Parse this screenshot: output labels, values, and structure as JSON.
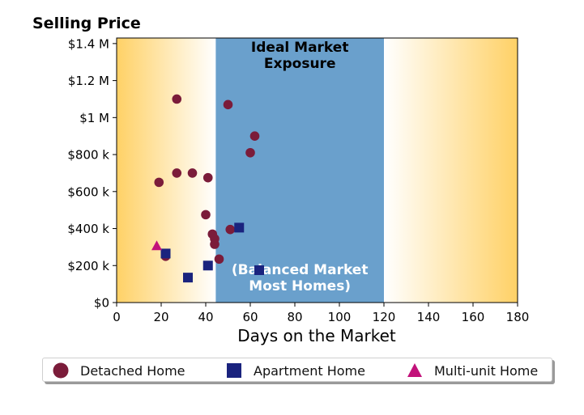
{
  "chart_data": {
    "type": "scatter",
    "title": "Selling Price",
    "xlabel": "Days on the Market",
    "ylabel": "",
    "xlim": [
      0,
      180
    ],
    "ylim": [
      0,
      1430000
    ],
    "x_ticks": [
      0,
      20,
      40,
      60,
      80,
      100,
      120,
      140,
      160,
      180
    ],
    "x_tick_labels": [
      "0",
      "20",
      "40",
      "60",
      "80",
      "100",
      "120",
      "140",
      "160",
      "180"
    ],
    "y_ticks": [
      0,
      200000,
      400000,
      600000,
      800000,
      1000000,
      1200000,
      1400000
    ],
    "y_tick_labels": [
      "$0",
      "$200 k",
      "$400 k",
      "$600 k",
      "$800 k",
      "$1 M",
      "$1.2 M",
      "$1.4 M"
    ],
    "grid": false,
    "legend_position": "bottom",
    "background": {
      "gradient_color": "#ffd166",
      "ideal_band": {
        "from": 44.5,
        "to": 120,
        "color": "#6aa0cc"
      },
      "annotation_top": [
        "Ideal Market",
        "Exposure"
      ],
      "annotation_bottom": [
        "(Balanced Market",
        "Most Homes)"
      ]
    },
    "series": [
      {
        "name": "Detached Home",
        "marker": "circle",
        "color": "#7b1c3a",
        "points": [
          [
            27,
            1100000
          ],
          [
            50,
            1070000
          ],
          [
            62,
            900000
          ],
          [
            60,
            810000
          ],
          [
            27,
            700000
          ],
          [
            34,
            700000
          ],
          [
            41,
            675000
          ],
          [
            19,
            650000
          ],
          [
            40,
            475000
          ],
          [
            43,
            370000
          ],
          [
            44,
            345000
          ],
          [
            44,
            315000
          ],
          [
            51,
            395000
          ],
          [
            46,
            235000
          ],
          [
            22,
            250000
          ]
        ]
      },
      {
        "name": "Apartment Home",
        "marker": "square",
        "color": "#1a237e",
        "points": [
          [
            55,
            405000
          ],
          [
            64,
            175000
          ],
          [
            22,
            265000
          ],
          [
            41,
            200000
          ],
          [
            32,
            135000
          ]
        ]
      },
      {
        "name": "Multi-unit Home",
        "marker": "triangle",
        "color": "#c2127a",
        "points": [
          [
            18,
            305000
          ]
        ]
      }
    ]
  }
}
